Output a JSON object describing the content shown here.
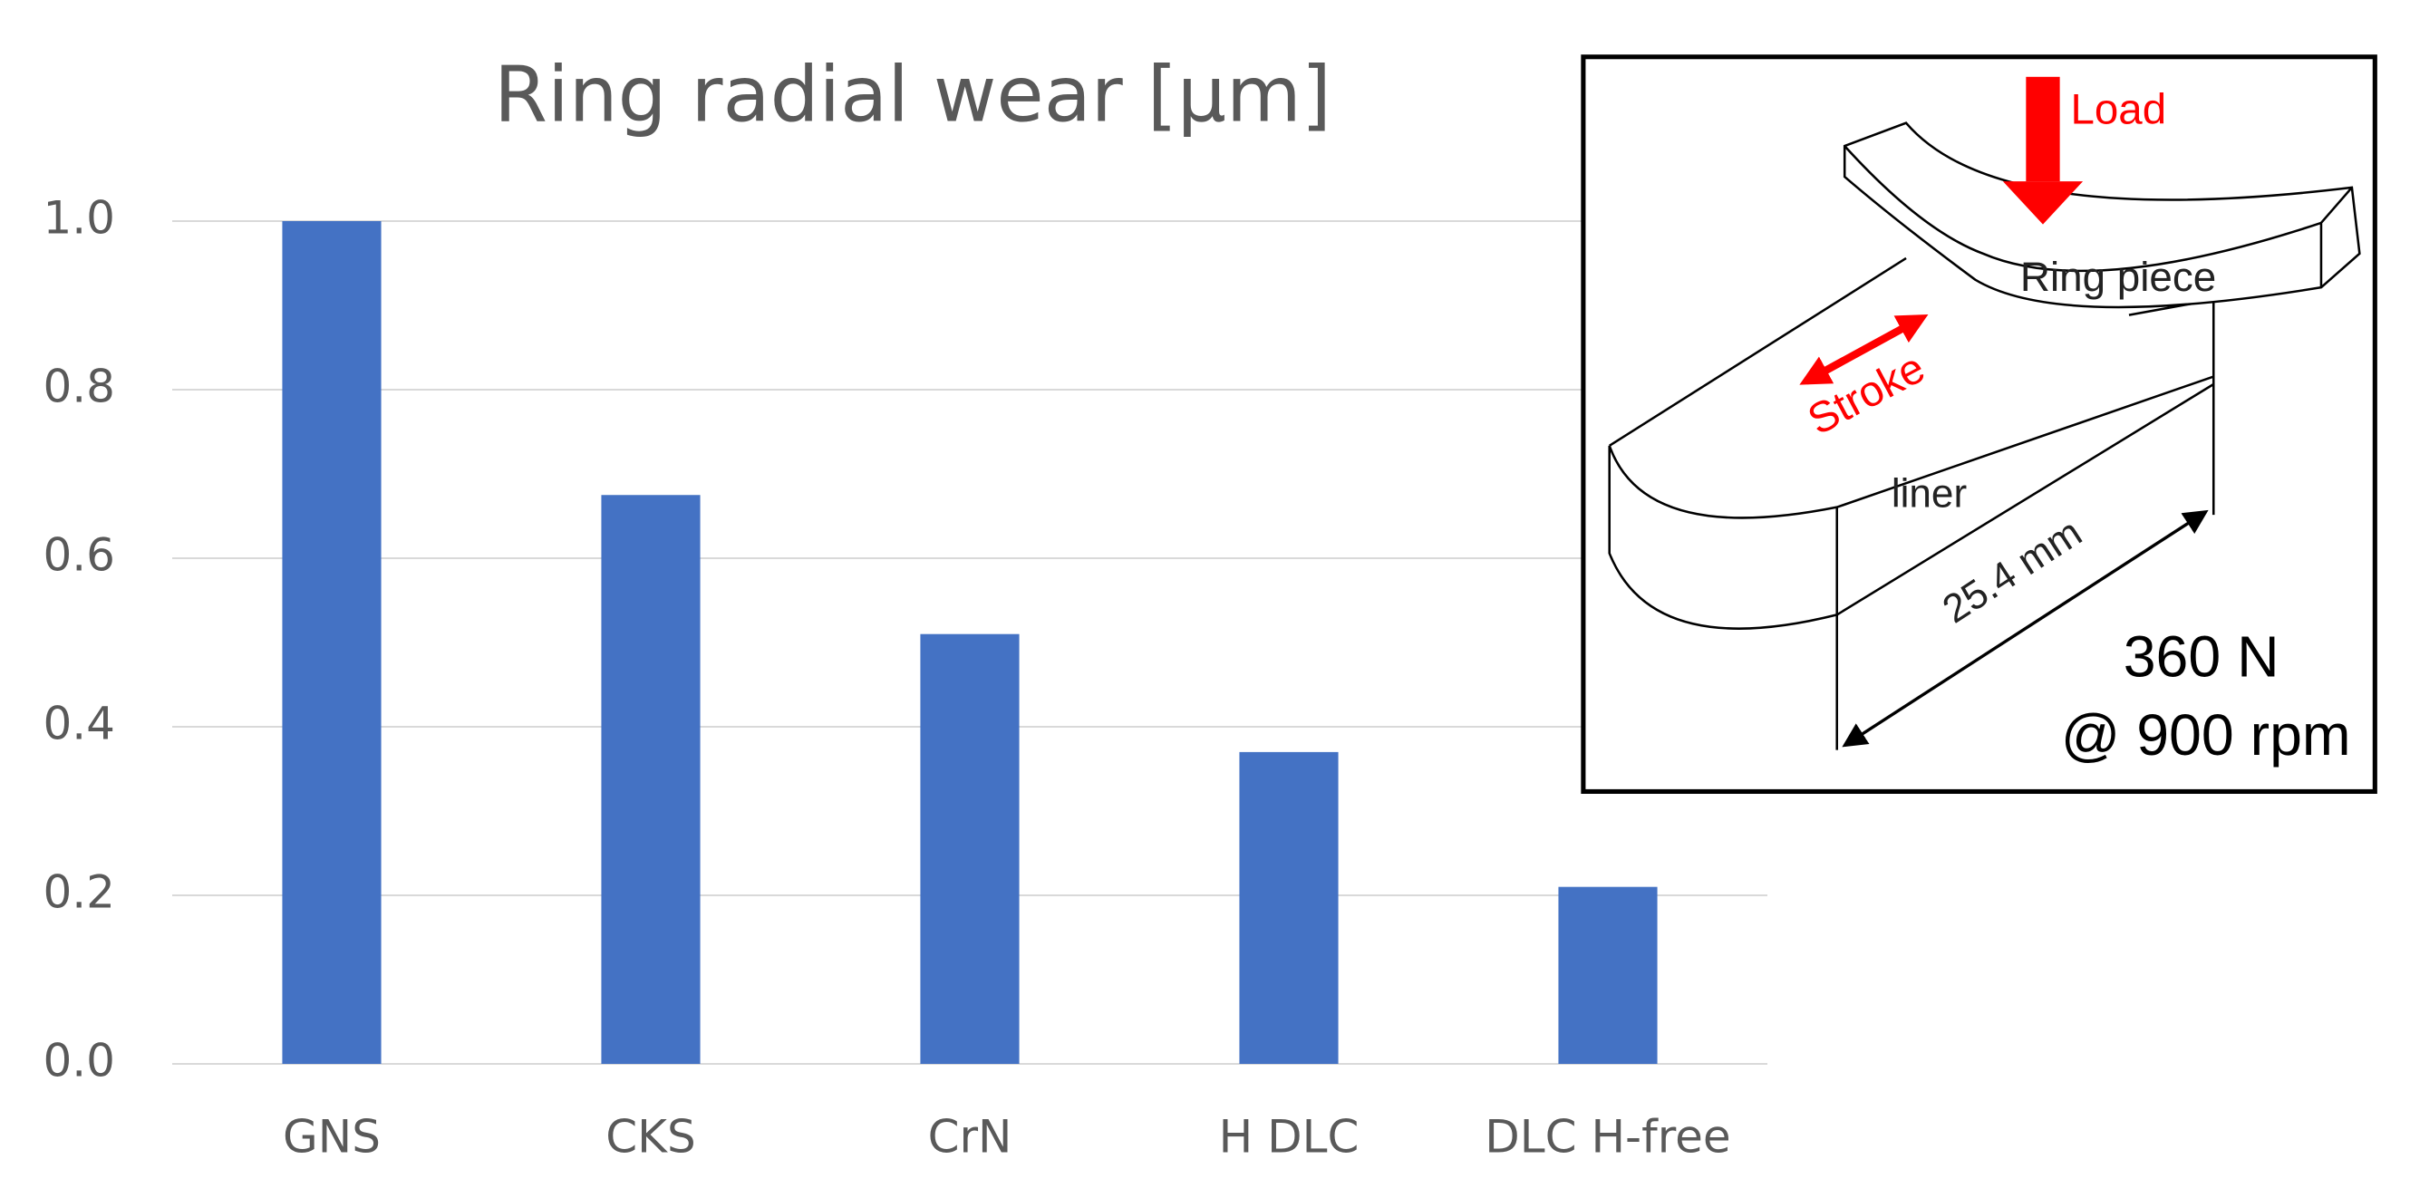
{
  "chart_data": {
    "type": "bar",
    "title": "Ring radial wear [µm]",
    "categories": [
      "GNS",
      "CKS",
      "CrN",
      "H DLC",
      "DLC H-free"
    ],
    "values": [
      1.0,
      0.675,
      0.51,
      0.37,
      0.21
    ],
    "color": "#4472c4",
    "ylim": [
      0,
      1
    ],
    "yticks": [
      {
        "value": 0,
        "label": "0.0"
      },
      0.2,
      0.4,
      0.6,
      0.8,
      {
        "value": 1,
        "label": "1.0"
      }
    ],
    "grid": true
  },
  "inset": {
    "load": "Load",
    "ring": "Ring piece",
    "stroke": "Stroke",
    "liner": "liner",
    "length": "25.4 mm",
    "force": "360 N",
    "speed": "@ 900 rpm"
  }
}
